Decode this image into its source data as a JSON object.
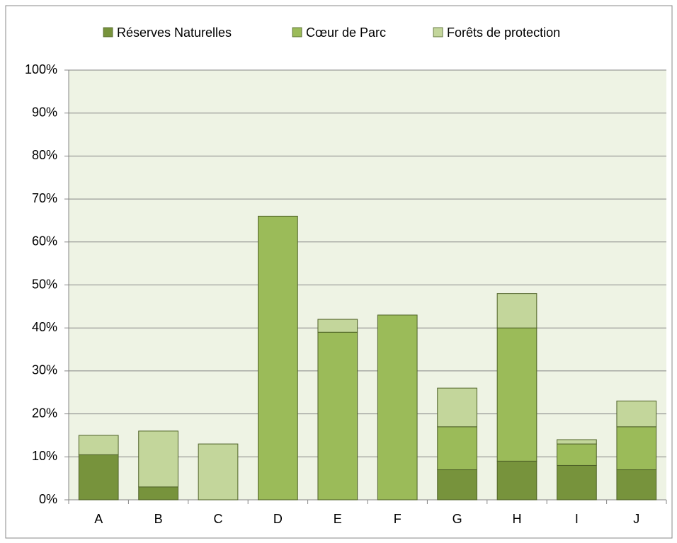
{
  "chart_data": {
    "type": "stacked_bar",
    "categories": [
      "A",
      "B",
      "C",
      "D",
      "E",
      "F",
      "G",
      "H",
      "I",
      "J"
    ],
    "series": [
      {
        "name": "Réserves Naturelles",
        "color": "#77933c",
        "values": [
          10.5,
          3,
          0,
          0,
          0,
          0,
          7,
          9,
          8,
          7
        ]
      },
      {
        "name": "Cœur de Parc",
        "color": "#9bbb59",
        "values": [
          0,
          0,
          0,
          66,
          39,
          43,
          10,
          31,
          5,
          10
        ]
      },
      {
        "name": "Forêts de protection",
        "color": "#c3d69b",
        "values": [
          4.5,
          13,
          13,
          0,
          3,
          0,
          9,
          8,
          1,
          6
        ]
      }
    ],
    "ylim": [
      0,
      100
    ],
    "yticks": [
      {
        "value": 0,
        "label": "0%"
      },
      {
        "value": 10,
        "label": "10%"
      },
      {
        "value": 20,
        "label": "20%"
      },
      {
        "value": 30,
        "label": "30%"
      },
      {
        "value": 40,
        "label": "40%"
      },
      {
        "value": 50,
        "label": "50%"
      },
      {
        "value": 60,
        "label": "60%"
      },
      {
        "value": 70,
        "label": "70%"
      },
      {
        "value": 80,
        "label": "80%"
      },
      {
        "value": 90,
        "label": "90%"
      },
      {
        "value": 100,
        "label": "100%"
      }
    ],
    "grid": true,
    "legend": "top",
    "plot_background": "#eef3e4"
  }
}
